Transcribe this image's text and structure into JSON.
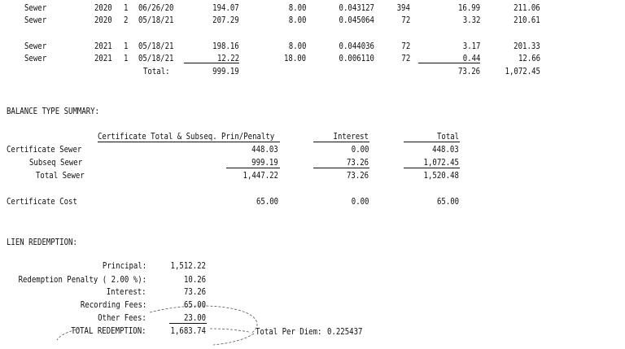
{
  "detail": {
    "rows": [
      {
        "type": "Sewer",
        "year": "2020",
        "seq": "1",
        "date": "06/26/20",
        "principal": "194.07",
        "rate": "8.00",
        "factor": "0.043127",
        "days": "394",
        "interest": "16.99",
        "total": "211.06"
      },
      {
        "type": "Sewer",
        "year": "2020",
        "seq": "2",
        "date": "05/18/21",
        "principal": "207.29",
        "rate": "8.00",
        "factor": "0.045064",
        "days": "72",
        "interest": "3.32",
        "total": "210.61"
      },
      {
        "type": "Sewer",
        "year": "2021",
        "seq": "1",
        "date": "05/18/21",
        "principal": "198.16",
        "rate": "8.00",
        "factor": "0.044036",
        "days": "72",
        "interest": "3.17",
        "total": "201.33"
      },
      {
        "type": "Sewer",
        "year": "2021",
        "seq": "1",
        "date": "05/18/21",
        "principal": "12.22",
        "rate": "18.00",
        "factor": "0.006110",
        "days": "72",
        "interest": "0.44",
        "total": "12.66"
      }
    ],
    "total_label": "Total:",
    "total_principal": "999.19",
    "total_interest": "73.26",
    "total_total": "1,072.45"
  },
  "balance": {
    "heading": "BALANCE TYPE SUMMARY:",
    "col_headers": [
      "Certificate Total & Subseq. Prin/Penalty",
      "Interest",
      "Total"
    ],
    "rows": [
      {
        "label": "Certificate Sewer",
        "prin": "448.03",
        "interest": "0.00",
        "total": "448.03"
      },
      {
        "label": "Subseq Sewer",
        "prin": "999.19",
        "interest": "73.26",
        "total": "1,072.45"
      },
      {
        "label": "Total Sewer",
        "prin": "1,447.22",
        "interest": "73.26",
        "total": "1,520.48"
      },
      {
        "label": "Certificate Cost",
        "prin": "65.00",
        "interest": "0.00",
        "total": "65.00"
      }
    ]
  },
  "lien": {
    "heading": "LIEN REDEMPTION:",
    "rows": [
      {
        "label": "Principal:",
        "value": "1,512.22"
      },
      {
        "label": "Redemption Penalty ( 2.00 %):",
        "value": "10.26"
      },
      {
        "label": "Interest:",
        "value": "73.26"
      },
      {
        "label": "Recording Fees:",
        "value": "65.00"
      },
      {
        "label": "Other Fees:",
        "value": "23.00"
      },
      {
        "label": "TOTAL REDEMPTION:",
        "value": "1,683.74"
      }
    ],
    "per_diem_label": "Total Per Diem:",
    "per_diem_value": "0.225437"
  }
}
